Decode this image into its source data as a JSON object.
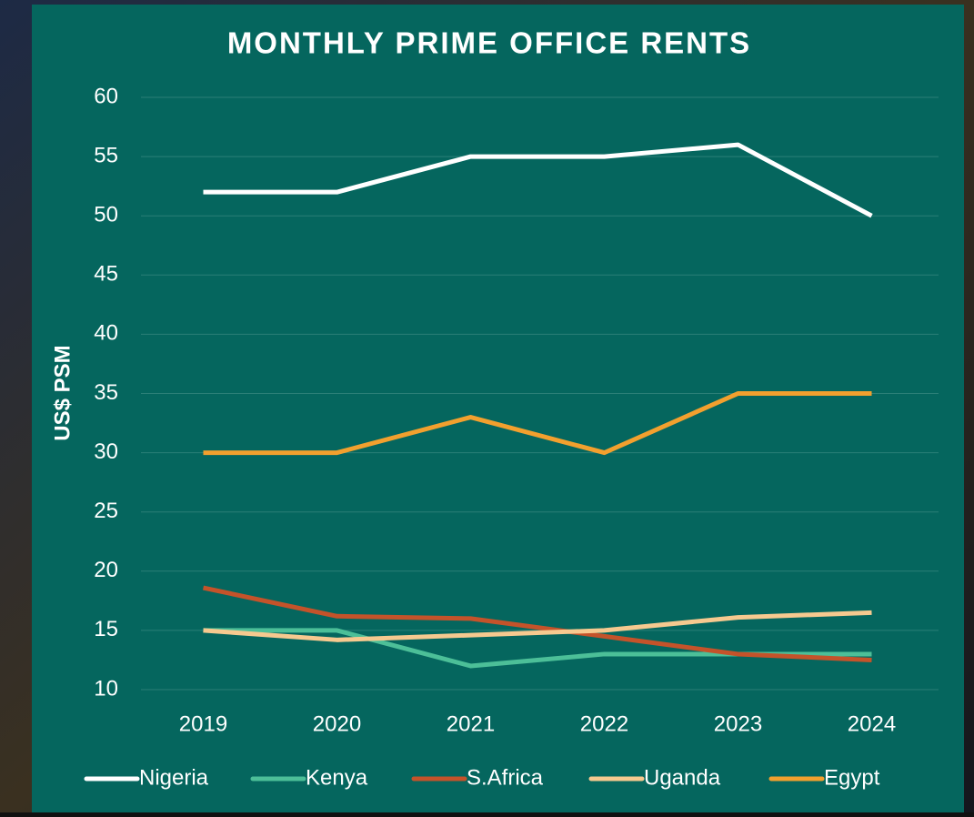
{
  "chart_data": {
    "type": "line",
    "title": "MONTHLY PRIME OFFICE RENTS",
    "y_label": "US$ PSM",
    "categories": [
      "2019",
      "2020",
      "2021",
      "2022",
      "2023",
      "2024"
    ],
    "series": [
      {
        "name": "Nigeria",
        "color": "#ffffff",
        "values": [
          52,
          52,
          55,
          55,
          56,
          50
        ]
      },
      {
        "name": "Kenya",
        "color": "#4cbf98",
        "values": [
          15,
          15,
          12,
          13,
          13,
          13
        ]
      },
      {
        "name": "S.Africa",
        "color": "#c4532a",
        "values": [
          18.6,
          16.2,
          16,
          14.5,
          13,
          12.5
        ]
      },
      {
        "name": "Uganda",
        "color": "#f6c98f",
        "values": [
          15,
          14.2,
          14.6,
          15,
          16.1,
          16.5
        ]
      },
      {
        "name": "Egypt",
        "color": "#f2a02e",
        "values": [
          30,
          30,
          33,
          30,
          35,
          35
        ]
      }
    ],
    "ylim": [
      10,
      60
    ],
    "yticks": [
      10,
      15,
      20,
      25,
      30,
      35,
      40,
      45,
      50,
      55,
      60
    ],
    "grid": true,
    "legend": "bottom"
  }
}
